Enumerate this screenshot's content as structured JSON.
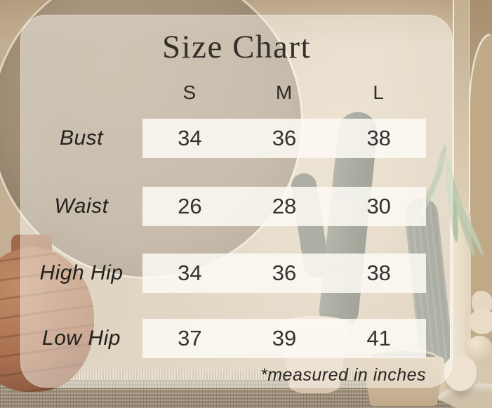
{
  "title": "Size Chart",
  "footnote": "*measured in inches",
  "chart_data": {
    "type": "table",
    "title": "Size Chart",
    "columns": [
      "S",
      "M",
      "L"
    ],
    "rows": [
      "Bust",
      "Waist",
      "High Hip",
      "Low Hip"
    ],
    "values": [
      [
        34,
        36,
        38
      ],
      [
        26,
        28,
        30
      ],
      [
        34,
        36,
        38
      ],
      [
        37,
        39,
        41
      ]
    ],
    "note": "*measured in inches",
    "unit": "inches"
  },
  "scene": {
    "background_elements": [
      "wall",
      "round-mirror-recess",
      "arch-doorway",
      "terracotta-jug",
      "cactus",
      "cactus",
      "plant-pots",
      "tall-vase",
      "sphere-vase",
      "hanging-greenery",
      "woven-rug"
    ]
  },
  "colors": {
    "wall": "#cbb89e",
    "circle_recess": "#9e8c75",
    "card_overlay": "rgba(255,252,245,0.44)",
    "row_band": "#fdfaf4",
    "text": "#2e2b26",
    "terracotta": "#a96f4f",
    "cactus": "#6b7062",
    "rug": "#a99a85"
  }
}
